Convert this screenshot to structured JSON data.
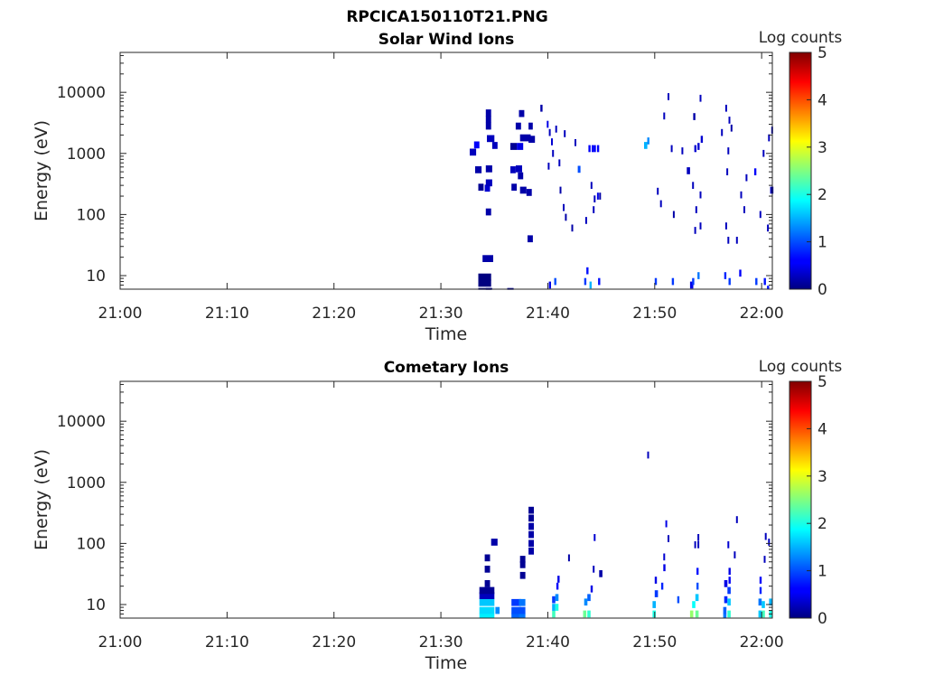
{
  "figure": {
    "title": "RPCICA150110T21.PNG"
  },
  "chart_data": [
    {
      "type": "heatmap",
      "title": "Solar Wind Ions",
      "xlabel": "Time",
      "ylabel": "Energy (eV)",
      "x_ticks": [
        "21:00",
        "21:10",
        "21:20",
        "21:30",
        "21:40",
        "21:50",
        "22:00"
      ],
      "xlim_minutes": [
        0,
        61
      ],
      "y_scale": "log",
      "y_ticks": [
        "10",
        "100",
        "1000",
        "10000"
      ],
      "ylim": [
        6,
        45000
      ],
      "colorbar": {
        "label": "Log counts",
        "range": [
          0,
          5
        ],
        "ticks": [
          "0",
          "1",
          "2",
          "3",
          "4",
          "5"
        ],
        "colormap": "jet"
      },
      "cells": [
        [
          33.5,
          5.5,
          1.2,
          0
        ],
        [
          33.5,
          7.5,
          1.2,
          0
        ],
        [
          33.5,
          9.5,
          1.2,
          0
        ],
        [
          34.2,
          5.5,
          0.6,
          0.1
        ],
        [
          33.9,
          19,
          1,
          0.2
        ],
        [
          34.2,
          110,
          0.5,
          0.2
        ],
        [
          33.5,
          280,
          0.5,
          0.1
        ],
        [
          34.1,
          270,
          0.5,
          0.4
        ],
        [
          34.2,
          330,
          0.6,
          0.3
        ],
        [
          33.2,
          540,
          0.6,
          0.2
        ],
        [
          34.2,
          560,
          0.6,
          0.2
        ],
        [
          32.7,
          1050,
          0.6,
          0.3
        ],
        [
          33.1,
          1380,
          0.5,
          0.6
        ],
        [
          34.3,
          1750,
          0.7,
          0.3
        ],
        [
          34.8,
          1350,
          0.5,
          0.3
        ],
        [
          34.2,
          2800,
          0.5,
          0.2
        ],
        [
          34.2,
          3600,
          0.5,
          0.2
        ],
        [
          34.2,
          4600,
          0.5,
          0.2
        ],
        [
          36.2,
          5.5,
          0.6,
          0.1
        ],
        [
          36.5,
          1300,
          0.6,
          0.1
        ],
        [
          37.1,
          1300,
          0.6,
          0.5
        ],
        [
          37.4,
          1800,
          1.0,
          0.2
        ],
        [
          38.2,
          1700,
          0.6,
          0.2
        ],
        [
          37,
          2800,
          0.5,
          0.2
        ],
        [
          37.3,
          4500,
          0.5,
          0.2
        ],
        [
          36.5,
          540,
          0.5,
          0.3
        ],
        [
          37,
          560,
          0.6,
          0.3
        ],
        [
          37.2,
          430,
          0.5,
          0.2
        ],
        [
          36.6,
          280,
          0.5,
          0.2
        ],
        [
          37.4,
          250,
          0.6,
          0.2
        ],
        [
          38,
          230,
          0.5,
          0.2
        ],
        [
          38.1,
          40,
          0.5,
          0.2
        ],
        [
          38.2,
          2800,
          0.4,
          0.2
        ],
        [
          39.3,
          5500,
          0.2,
          0.2
        ],
        [
          39.9,
          3000,
          0.15,
          0.5
        ],
        [
          40.1,
          2200,
          0.15,
          0.3
        ],
        [
          40.3,
          1550,
          0.15,
          0.4
        ],
        [
          40.4,
          1000,
          0.15,
          0.3
        ],
        [
          40,
          620,
          0.15,
          0.3
        ],
        [
          40.7,
          2500,
          0.15,
          0.3
        ],
        [
          41,
          700,
          0.15,
          0.3
        ],
        [
          41.1,
          250,
          0.15,
          0.2
        ],
        [
          41.4,
          130,
          0.15,
          0.3
        ],
        [
          41.6,
          90,
          0.15,
          0.2
        ],
        [
          41.5,
          2100,
          0.15,
          0.3
        ],
        [
          42.2,
          60,
          0.15,
          0.2
        ],
        [
          42.5,
          1500,
          0.15,
          0.3
        ],
        [
          42.8,
          550,
          0.25,
          1.0
        ],
        [
          43.5,
          80,
          0.15,
          0.3
        ],
        [
          43.8,
          1200,
          0.2,
          0.6
        ],
        [
          44.1,
          1200,
          0.2,
          0.6
        ],
        [
          44.3,
          1200,
          0.2,
          0.6
        ],
        [
          44.6,
          1200,
          0.2,
          0.6
        ],
        [
          44,
          300,
          0.15,
          0.3
        ],
        [
          44.3,
          180,
          0.15,
          0.3
        ],
        [
          44.6,
          200,
          0.15,
          0.5
        ],
        [
          44.8,
          200,
          0.15,
          0.2
        ],
        [
          44.2,
          120,
          0.15,
          0.3
        ],
        [
          40.1,
          7,
          0.2,
          0.5
        ],
        [
          40.6,
          8,
          0.2,
          1.0
        ],
        [
          43.4,
          8,
          0.2,
          0.9
        ],
        [
          43.6,
          12,
          0.2,
          0.7
        ],
        [
          43.9,
          7,
          0.2,
          1.5
        ],
        [
          44.7,
          8,
          0.2,
          0.7
        ],
        [
          49,
          1350,
          0.3,
          1.5
        ],
        [
          49.3,
          1600,
          0.2,
          1.3
        ],
        [
          50.2,
          240,
          0.15,
          0.3
        ],
        [
          50.5,
          150,
          0.15,
          0.3
        ],
        [
          50.8,
          4100,
          0.15,
          0.3
        ],
        [
          51.2,
          8500,
          0.15,
          0.3
        ],
        [
          51.5,
          1200,
          0.15,
          0.3
        ],
        [
          51.7,
          100,
          0.15,
          0.2
        ],
        [
          52.5,
          1100,
          0.15,
          0.3
        ],
        [
          53,
          520,
          0.3,
          0.3
        ],
        [
          53.7,
          1200,
          0.2,
          0.4
        ],
        [
          53.6,
          4000,
          0.2,
          0.2
        ],
        [
          54,
          1300,
          0.2,
          0.4
        ],
        [
          54.3,
          1700,
          0.2,
          0.4
        ],
        [
          54.2,
          8000,
          0.15,
          0.3
        ],
        [
          53.8,
          120,
          0.15,
          0.3
        ],
        [
          53.7,
          55,
          0.15,
          0.3
        ],
        [
          54.2,
          65,
          0.15,
          0.3
        ],
        [
          53.5,
          300,
          0.15,
          0.3
        ],
        [
          54.2,
          210,
          0.15,
          0.3
        ],
        [
          56.6,
          5500,
          0.15,
          0.3
        ],
        [
          56.9,
          3500,
          0.15,
          0.3
        ],
        [
          57.1,
          2600,
          0.15,
          0.2
        ],
        [
          56.7,
          500,
          0.15,
          0.3
        ],
        [
          56.8,
          1100,
          0.15,
          0.3
        ],
        [
          56.2,
          2200,
          0.15,
          0.3
        ],
        [
          56.6,
          65,
          0.15,
          0.3
        ],
        [
          56.8,
          38,
          0.15,
          0.3
        ],
        [
          57.6,
          38,
          0.15,
          0.3
        ],
        [
          58,
          210,
          0.15,
          0.3
        ],
        [
          58.3,
          120,
          0.15,
          0.3
        ],
        [
          58.5,
          400,
          0.15,
          0.3
        ],
        [
          59.3,
          500,
          0.2,
          0.6
        ],
        [
          60.1,
          1000,
          0.15,
          0.3
        ],
        [
          60.6,
          1800,
          0.15,
          0.3
        ],
        [
          60.9,
          2400,
          0.15,
          0.3
        ],
        [
          60.8,
          250,
          0.3,
          0.3
        ],
        [
          60.5,
          60,
          0.15,
          0.3
        ],
        [
          59.8,
          100,
          0.15,
          0.3
        ],
        [
          50,
          8,
          0.2,
          0.9
        ],
        [
          51.6,
          8,
          0.2,
          0.9
        ],
        [
          53.3,
          7,
          0.3,
          0.5
        ],
        [
          53.5,
          8,
          0.2,
          0.9
        ],
        [
          54,
          10,
          0.2,
          1.2
        ],
        [
          56.5,
          10,
          0.2,
          0.8
        ],
        [
          56.9,
          8,
          0.2,
          0.9
        ],
        [
          57.9,
          11,
          0.2,
          0.6
        ],
        [
          59.4,
          8,
          0.2,
          0.9
        ],
        [
          60.2,
          8,
          0.2,
          0.7
        ],
        [
          60.5,
          6,
          0.2,
          0.7
        ]
      ]
    },
    {
      "type": "heatmap",
      "title": "Cometary Ions",
      "xlabel": "Time",
      "ylabel": "Energy (eV)",
      "x_ticks": [
        "21:00",
        "21:10",
        "21:20",
        "21:30",
        "21:40",
        "21:50",
        "22:00"
      ],
      "xlim_minutes": [
        0,
        61
      ],
      "y_scale": "log",
      "y_ticks": [
        "10",
        "100",
        "1000",
        "10000"
      ],
      "ylim": [
        6,
        45000
      ],
      "colorbar": {
        "label": "Log counts",
        "range": [
          0,
          5
        ],
        "ticks": [
          "0",
          "1",
          "2",
          "3",
          "4",
          "5"
        ],
        "colormap": "jet"
      },
      "cells": [
        [
          33.6,
          6.3,
          1.4,
          1.8
        ],
        [
          33.6,
          8,
          1.4,
          1.7
        ],
        [
          33.6,
          10.8,
          1.4,
          1.6
        ],
        [
          33.6,
          14,
          1.4,
          0.3
        ],
        [
          33.6,
          17,
          1.4,
          0.1
        ],
        [
          34.1,
          22,
          0.5,
          0.1
        ],
        [
          34.1,
          38,
          0.5,
          0.1
        ],
        [
          34.1,
          58,
          0.5,
          0.1
        ],
        [
          34.7,
          105,
          0.6,
          0.2
        ],
        [
          35.1,
          8,
          0.4,
          1.3
        ],
        [
          36.6,
          6.3,
          0.9,
          1.1
        ],
        [
          36.6,
          8,
          0.9,
          1.0
        ],
        [
          36.6,
          10.8,
          0.9,
          0.9
        ],
        [
          37.3,
          6.3,
          0.6,
          1.2
        ],
        [
          37.3,
          8,
          0.6,
          1.0
        ],
        [
          37.3,
          10.8,
          0.6,
          1.2
        ],
        [
          37.4,
          30,
          0.5,
          0.1
        ],
        [
          37.4,
          45,
          0.5,
          0.1
        ],
        [
          37.4,
          55,
          0.5,
          0.1
        ],
        [
          38.2,
          75,
          0.5,
          0.2
        ],
        [
          38.2,
          100,
          0.5,
          0.2
        ],
        [
          38.2,
          140,
          0.5,
          0.2
        ],
        [
          38.2,
          190,
          0.5,
          0.2
        ],
        [
          38.2,
          260,
          0.5,
          0.1
        ],
        [
          38.2,
          350,
          0.5,
          0.1
        ],
        [
          40.4,
          7,
          0.3,
          2.2
        ],
        [
          40.4,
          9,
          0.3,
          1.5
        ],
        [
          40.4,
          12,
          0.3,
          0.9
        ],
        [
          40.7,
          9,
          0.3,
          2.0
        ],
        [
          40.7,
          13,
          0.3,
          1.3
        ],
        [
          40.8,
          20,
          0.2,
          0.6
        ],
        [
          40.9,
          26,
          0.2,
          0.5
        ],
        [
          41.9,
          58,
          0.15,
          0.2
        ],
        [
          43.3,
          7,
          0.3,
          2.4
        ],
        [
          43.4,
          11,
          0.3,
          1.3
        ],
        [
          43.7,
          7,
          0.3,
          2.1
        ],
        [
          43.7,
          13,
          0.3,
          1.1
        ],
        [
          44,
          18,
          0.2,
          0.5
        ],
        [
          44.2,
          38,
          0.15,
          0.3
        ],
        [
          44.3,
          125,
          0.15,
          0.4
        ],
        [
          44.8,
          32,
          0.3,
          0.2
        ],
        [
          49.3,
          2800,
          0.15,
          0.3
        ],
        [
          49.8,
          7,
          0.3,
          2.0
        ],
        [
          49.8,
          10,
          0.3,
          1.5
        ],
        [
          50,
          15,
          0.3,
          0.9
        ],
        [
          50,
          25,
          0.2,
          0.5
        ],
        [
          50.6,
          20,
          0.2,
          0.8
        ],
        [
          50.8,
          40,
          0.2,
          0.5
        ],
        [
          50.8,
          60,
          0.15,
          0.4
        ],
        [
          51,
          210,
          0.15,
          0.5
        ],
        [
          51.2,
          120,
          0.15,
          0.3
        ],
        [
          52.1,
          12,
          0.2,
          1.0
        ],
        [
          53.3,
          7,
          0.3,
          2.6
        ],
        [
          53.5,
          10,
          0.3,
          1.9
        ],
        [
          53.8,
          7,
          0.3,
          2.4
        ],
        [
          53.8,
          13,
          0.3,
          1.6
        ],
        [
          53.9,
          20,
          0.2,
          1.0
        ],
        [
          53.9,
          35,
          0.2,
          0.7
        ],
        [
          53.7,
          95,
          0.15,
          0.3
        ],
        [
          54,
          95,
          0.15,
          0.3
        ],
        [
          54,
          125,
          0.15,
          0.3
        ],
        [
          56.4,
          6.3,
          0.3,
          1.2
        ],
        [
          56.4,
          8,
          0.3,
          1.1
        ],
        [
          56.5,
          12,
          0.3,
          0.8
        ],
        [
          56.5,
          22,
          0.3,
          0.5
        ],
        [
          56.8,
          7,
          0.3,
          2.1
        ],
        [
          56.8,
          11,
          0.3,
          1.6
        ],
        [
          56.8,
          17,
          0.3,
          0.9
        ],
        [
          56.9,
          25,
          0.2,
          0.6
        ],
        [
          56.9,
          35,
          0.2,
          0.5
        ],
        [
          56.8,
          95,
          0.15,
          0.4
        ],
        [
          57.4,
          65,
          0.15,
          0.3
        ],
        [
          57.6,
          245,
          0.15,
          0.3
        ],
        [
          59.7,
          7,
          0.3,
          1.6
        ],
        [
          59.7,
          11,
          0.3,
          1.2
        ],
        [
          59.8,
          17,
          0.2,
          0.8
        ],
        [
          59.8,
          25,
          0.2,
          0.6
        ],
        [
          60,
          7,
          0.3,
          2.2
        ],
        [
          60,
          10,
          0.3,
          1.6
        ],
        [
          60.2,
          55,
          0.15,
          0.3
        ],
        [
          60.3,
          130,
          0.15,
          0.3
        ],
        [
          60.6,
          105,
          0.15,
          0.3
        ],
        [
          60.7,
          7,
          0.3,
          2.0
        ],
        [
          60.7,
          11,
          0.3,
          1.5
        ]
      ]
    }
  ]
}
